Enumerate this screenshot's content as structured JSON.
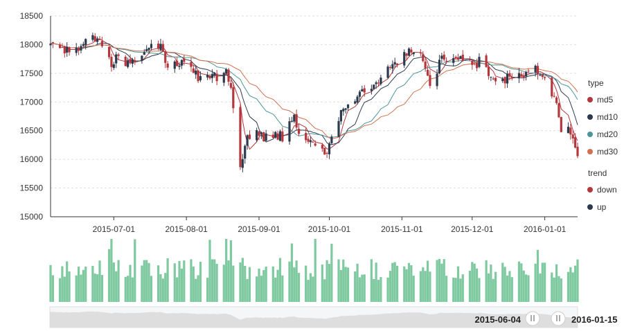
{
  "chart_data": {
    "type": "candlestick",
    "y_axis": {
      "min": 15000,
      "max": 18500,
      "ticks": [
        15000,
        15500,
        16000,
        16500,
        17000,
        17500,
        18000,
        18500
      ],
      "grid": true
    },
    "x_axis": {
      "start": "2015-06-04",
      "end": "2016-01-15",
      "tick_labels": [
        "2015-07-01",
        "2015-08-01",
        "2015-09-01",
        "2015-10-01",
        "2015-11-01",
        "2015-12-01",
        "2016-01-01"
      ]
    },
    "legend": {
      "placement": "right",
      "groups": [
        {
          "title": "type",
          "items": [
            {
              "label": "md5",
              "color": "#b5373d"
            },
            {
              "label": "md10",
              "color": "#2c3a4d"
            },
            {
              "label": "md20",
              "color": "#4c9597"
            },
            {
              "label": "md30",
              "color": "#d0704f"
            }
          ]
        },
        {
          "title": "trend",
          "items": [
            {
              "label": "down",
              "color": "#b5373d"
            },
            {
              "label": "up",
              "color": "#2c3a4d"
            }
          ]
        }
      ]
    },
    "colors": {
      "down": "#b5373d",
      "up": "#2c3a4d",
      "volume": "#7ec9a0"
    },
    "close_series": [
      [
        "2015-06-04",
        18000
      ],
      [
        "2015-06-08",
        17850
      ],
      [
        "2015-06-12",
        17950
      ],
      [
        "2015-06-16",
        17880
      ],
      [
        "2015-06-19",
        18050
      ],
      [
        "2015-06-23",
        18100
      ],
      [
        "2015-06-26",
        17980
      ],
      [
        "2015-06-30",
        17650
      ],
      [
        "2015-07-02",
        17750
      ],
      [
        "2015-07-08",
        17650
      ],
      [
        "2015-07-14",
        17850
      ],
      [
        "2015-07-17",
        18100
      ],
      [
        "2015-07-21",
        17950
      ],
      [
        "2015-07-24",
        17650
      ],
      [
        "2015-07-28",
        17700
      ],
      [
        "2015-07-31",
        17650
      ],
      [
        "2015-08-04",
        17500
      ],
      [
        "2015-08-07",
        17400
      ],
      [
        "2015-08-11",
        17500
      ],
      [
        "2015-08-14",
        17450
      ],
      [
        "2015-08-18",
        17550
      ],
      [
        "2015-08-20",
        17300
      ],
      [
        "2015-08-24",
        15850
      ],
      [
        "2015-08-26",
        16300
      ],
      [
        "2015-08-31",
        16500
      ],
      [
        "2015-09-03",
        16350
      ],
      [
        "2015-09-08",
        16450
      ],
      [
        "2015-09-11",
        16400
      ],
      [
        "2015-09-16",
        16700
      ],
      [
        "2015-09-18",
        16450
      ],
      [
        "2015-09-22",
        16350
      ],
      [
        "2015-09-25",
        16300
      ],
      [
        "2015-09-29",
        16050
      ],
      [
        "2015-10-01",
        16250
      ],
      [
        "2015-10-05",
        16750
      ],
      [
        "2015-10-08",
        16950
      ],
      [
        "2015-10-12",
        17100
      ],
      [
        "2015-10-16",
        17200
      ],
      [
        "2015-10-21",
        17300
      ],
      [
        "2015-10-26",
        17650
      ],
      [
        "2015-10-30",
        17700
      ],
      [
        "2015-11-04",
        17900
      ],
      [
        "2015-11-09",
        17850
      ],
      [
        "2015-11-13",
        17300
      ],
      [
        "2015-11-18",
        17750
      ],
      [
        "2015-11-23",
        17800
      ],
      [
        "2015-11-27",
        17800
      ],
      [
        "2015-12-02",
        17600
      ],
      [
        "2015-12-04",
        17750
      ],
      [
        "2015-12-09",
        17450
      ],
      [
        "2015-12-14",
        17350
      ],
      [
        "2015-12-17",
        17500
      ],
      [
        "2015-12-22",
        17450
      ],
      [
        "2015-12-28",
        17550
      ],
      [
        "2015-12-31",
        17450
      ],
      [
        "2016-01-05",
        17100
      ],
      [
        "2016-01-08",
        16500
      ],
      [
        "2016-01-12",
        16500
      ],
      [
        "2016-01-15",
        16000
      ]
    ]
  },
  "data_zoom": {
    "start_label": "2015-06-04",
    "end_label": "2016-01-15"
  }
}
